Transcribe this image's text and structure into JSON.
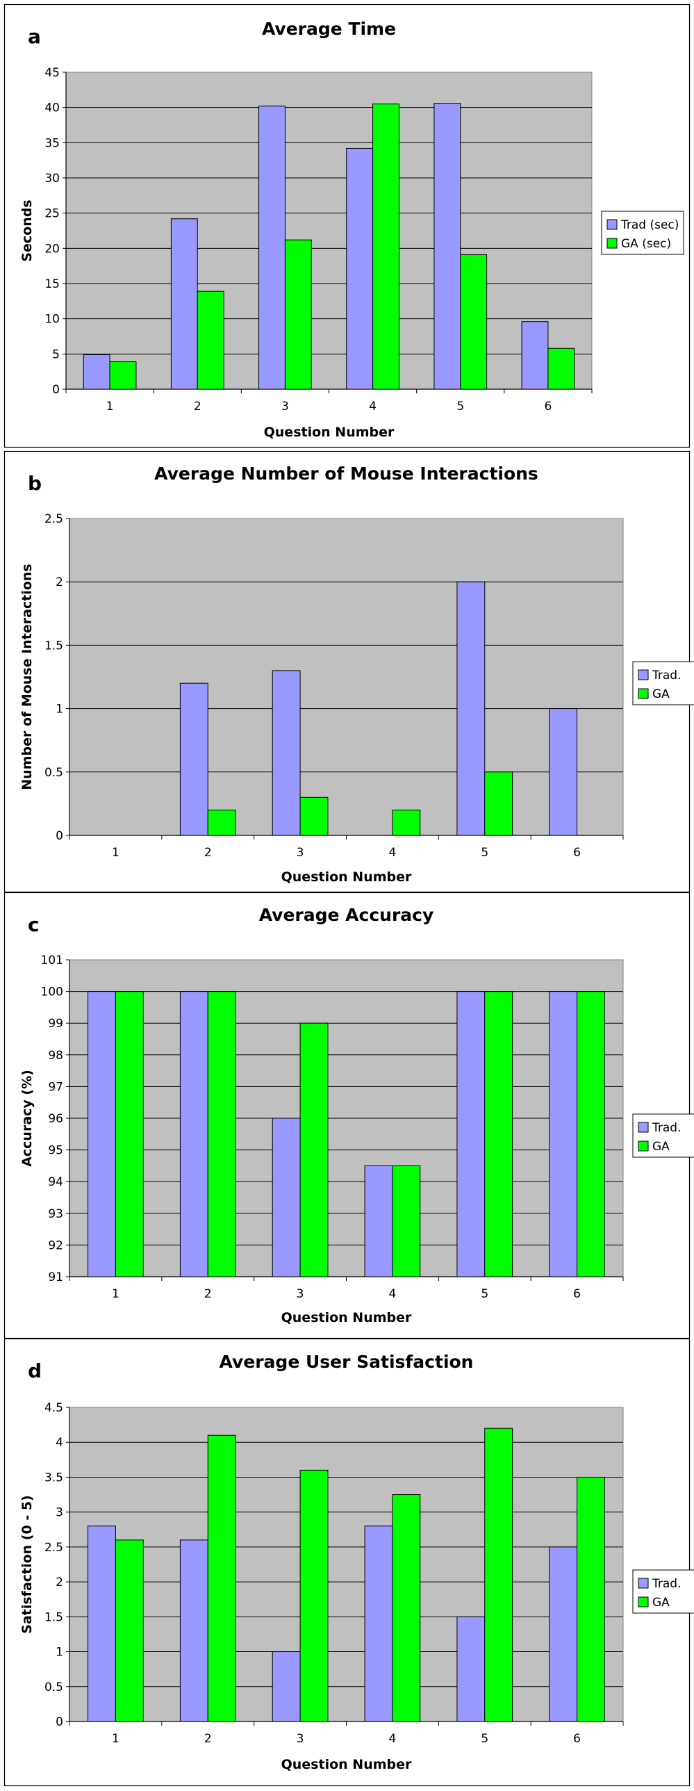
{
  "chart_data": [
    {
      "letter": "a",
      "type": "bar",
      "title": "Average Time",
      "xlabel": "Question Number",
      "ylabel": "Seconds",
      "ylim": [
        0,
        45
      ],
      "ystep": 5,
      "yticks": [
        "0",
        "5",
        "10",
        "15",
        "20",
        "25",
        "30",
        "35",
        "40",
        "45"
      ],
      "categories": [
        "1",
        "2",
        "3",
        "4",
        "5",
        "6"
      ],
      "legend_position": "right",
      "grid": true,
      "series": [
        {
          "name": "Trad (sec)",
          "color": "#9999ff",
          "values": [
            4.9,
            24.2,
            40.2,
            34.2,
            40.6,
            9.6
          ]
        },
        {
          "name": "GA (sec)",
          "color": "#00ff00",
          "values": [
            3.9,
            13.9,
            21.2,
            40.5,
            19.1,
            5.8
          ]
        }
      ]
    },
    {
      "letter": "b",
      "type": "bar",
      "title": "Average Number of Mouse Interactions",
      "xlabel": "Question Number",
      "ylabel": "Number of Mouse Interactions",
      "ylim": [
        0,
        2.5
      ],
      "ystep": 0.5,
      "yticks": [
        "0",
        "0.5",
        "1",
        "1.5",
        "2",
        "2.5"
      ],
      "categories": [
        "1",
        "2",
        "3",
        "4",
        "5",
        "6"
      ],
      "legend_position": "right",
      "grid": true,
      "series": [
        {
          "name": "Trad.",
          "color": "#9999ff",
          "values": [
            0,
            1.2,
            1.3,
            0,
            2,
            1
          ]
        },
        {
          "name": "GA",
          "color": "#00ff00",
          "values": [
            0,
            0.2,
            0.3,
            0.2,
            0.5,
            0
          ]
        }
      ]
    },
    {
      "letter": "c",
      "type": "bar",
      "title": "Average Accuracy",
      "xlabel": "Question Number",
      "ylabel": "Accuracy (%)",
      "ylim": [
        91,
        101
      ],
      "ystep": 1,
      "yticks": [
        "91",
        "92",
        "93",
        "94",
        "95",
        "96",
        "97",
        "98",
        "99",
        "100",
        "101"
      ],
      "categories": [
        "1",
        "2",
        "3",
        "4",
        "5",
        "6"
      ],
      "legend_position": "right",
      "grid": true,
      "series": [
        {
          "name": "Trad.",
          "color": "#9999ff",
          "values": [
            100,
            100,
            96,
            94.5,
            100,
            100
          ]
        },
        {
          "name": "GA",
          "color": "#00ff00",
          "values": [
            100,
            100,
            99,
            94.5,
            100,
            100
          ]
        }
      ]
    },
    {
      "letter": "d",
      "type": "bar",
      "title": "Average User Satisfaction",
      "xlabel": "Question Number",
      "ylabel": "Satisfaction (0 - 5)",
      "ylim": [
        0,
        4.5
      ],
      "ystep": 0.5,
      "yticks": [
        "0",
        "0.5",
        "1",
        "1.5",
        "2",
        "2.5",
        "3",
        "3.5",
        "4",
        "4.5"
      ],
      "categories": [
        "1",
        "2",
        "3",
        "4",
        "5",
        "6"
      ],
      "legend_position": "right",
      "grid": true,
      "series": [
        {
          "name": "Trad.",
          "color": "#9999ff",
          "values": [
            2.8,
            2.6,
            1.0,
            2.8,
            1.5,
            2.5
          ]
        },
        {
          "name": "GA",
          "color": "#00ff00",
          "values": [
            2.6,
            4.1,
            3.6,
            3.25,
            4.2,
            3.5
          ]
        }
      ]
    }
  ]
}
